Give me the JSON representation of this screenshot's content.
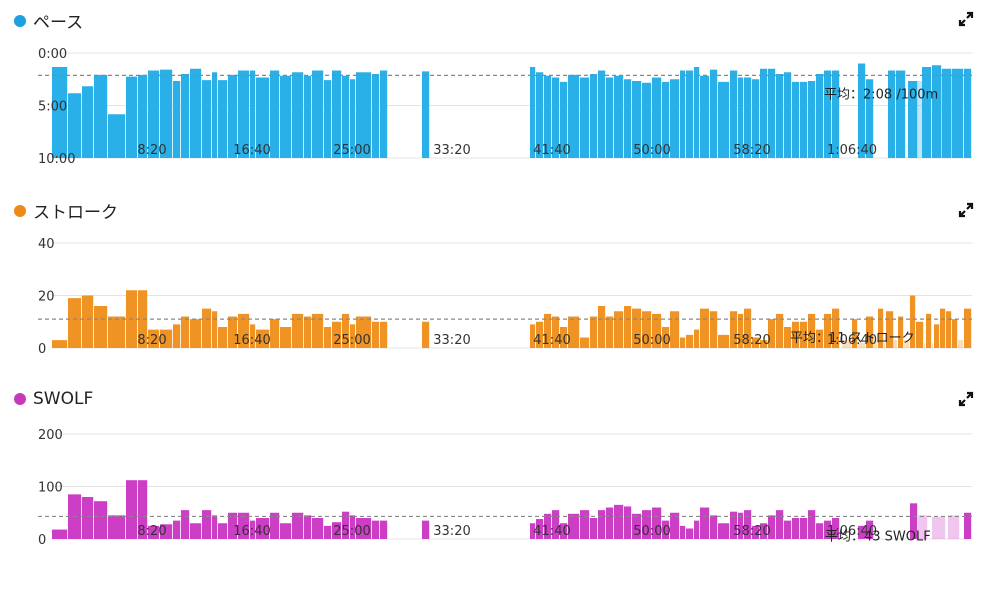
{
  "charts": [
    {
      "id": "pace",
      "title": "ペース",
      "color": "#2ab0e8",
      "dot_color": "#1e9fe0",
      "avg_label": "平均：2:08 /100m",
      "y_ticks": [
        "0:00",
        "5:00",
        "10:00"
      ],
      "x_ticks": [
        "8:20",
        "16:40",
        "25:00",
        "33:20",
        "41:40",
        "50:00",
        "58:20",
        "1:06:40"
      ]
    },
    {
      "id": "stroke",
      "title": "ストローク",
      "color": "#ef9424",
      "dot_color": "#ec8a18",
      "avg_label": "平均：11 ストローク",
      "y_ticks": [
        "40",
        "20",
        "0"
      ],
      "x_ticks": [
        "8:20",
        "16:40",
        "25:00",
        "33:20",
        "41:40",
        "50:00",
        "58:20",
        "1:06:40"
      ]
    },
    {
      "id": "swolf",
      "title": "SWOLF",
      "color": "#cc3ec6",
      "dot_color": "#c43ab8",
      "avg_label": "平均：43 SWOLF",
      "y_ticks": [
        "200",
        "100",
        "0"
      ],
      "x_ticks": [
        "8:20",
        "16:40",
        "25:00",
        "33:20",
        "41:40",
        "50:00",
        "58:20",
        "1:06:40"
      ]
    }
  ],
  "chart_data": [
    {
      "type": "bar",
      "title": "ペース",
      "xlabel": "",
      "ylabel": "",
      "x_unit": "seconds",
      "xlim": [
        0,
        4600
      ],
      "ylim": [
        0,
        600
      ],
      "y_inverted": true,
      "average": 128,
      "grid": true,
      "bars": [
        [
          0,
          80,
          80
        ],
        [
          80,
          150,
          230
        ],
        [
          150,
          210,
          190
        ],
        [
          210,
          280,
          125
        ],
        [
          280,
          370,
          350
        ],
        [
          370,
          430,
          135
        ],
        [
          430,
          480,
          125
        ],
        [
          480,
          540,
          100
        ],
        [
          540,
          605,
          95
        ],
        [
          605,
          645,
          160
        ],
        [
          645,
          690,
          120
        ],
        [
          690,
          750,
          90
        ],
        [
          750,
          800,
          155
        ],
        [
          800,
          830,
          110
        ],
        [
          830,
          880,
          155
        ],
        [
          880,
          930,
          125
        ],
        [
          930,
          990,
          100
        ],
        [
          990,
          1020,
          100
        ],
        [
          1020,
          1090,
          140
        ],
        [
          1090,
          1140,
          100
        ],
        [
          1140,
          1200,
          130
        ],
        [
          1200,
          1260,
          110
        ],
        [
          1260,
          1300,
          130
        ],
        [
          1300,
          1360,
          100
        ],
        [
          1360,
          1400,
          155
        ],
        [
          1400,
          1450,
          100
        ],
        [
          1450,
          1490,
          130
        ],
        [
          1490,
          1520,
          150
        ],
        [
          1520,
          1600,
          110
        ],
        [
          1600,
          1640,
          120
        ],
        [
          1640,
          1680,
          100
        ],
        [
          1850,
          1890,
          105
        ],
        [
          2390,
          2420,
          80
        ],
        [
          2420,
          2460,
          110
        ],
        [
          2460,
          2500,
          130
        ],
        [
          2500,
          2540,
          140
        ],
        [
          2540,
          2580,
          165
        ],
        [
          2580,
          2640,
          125
        ],
        [
          2640,
          2690,
          140
        ],
        [
          2690,
          2730,
          120
        ],
        [
          2730,
          2770,
          100
        ],
        [
          2770,
          2810,
          140
        ],
        [
          2810,
          2860,
          130
        ],
        [
          2860,
          2900,
          150
        ],
        [
          2900,
          2950,
          160
        ],
        [
          2950,
          3000,
          170
        ],
        [
          3000,
          3050,
          140
        ],
        [
          3050,
          3090,
          165
        ],
        [
          3090,
          3140,
          150
        ],
        [
          3140,
          3170,
          100
        ],
        [
          3170,
          3210,
          100
        ],
        [
          3210,
          3240,
          80
        ],
        [
          3240,
          3290,
          130
        ],
        [
          3290,
          3330,
          95
        ],
        [
          3330,
          3390,
          165
        ],
        [
          3390,
          3430,
          100
        ],
        [
          3430,
          3460,
          140
        ],
        [
          3460,
          3500,
          140
        ],
        [
          3500,
          3540,
          150
        ],
        [
          3540,
          3580,
          90
        ],
        [
          3580,
          3620,
          90
        ],
        [
          3620,
          3660,
          120
        ],
        [
          3660,
          3700,
          110
        ],
        [
          3700,
          3740,
          165
        ],
        [
          3740,
          3780,
          165
        ],
        [
          3780,
          3820,
          160
        ],
        [
          3820,
          3860,
          120
        ],
        [
          3860,
          3900,
          100
        ],
        [
          3900,
          3940,
          100
        ],
        [
          4030,
          4070,
          60
        ],
        [
          4070,
          4110,
          150
        ],
        [
          4180,
          4220,
          100
        ],
        [
          4220,
          4270,
          100
        ],
        [
          4280,
          4330,
          160
        ],
        [
          4350,
          4400,
          80
        ],
        [
          4400,
          4450,
          70
        ],
        [
          4450,
          4500,
          90
        ],
        [
          4500,
          4560,
          90
        ],
        [
          4560,
          4600,
          90
        ]
      ],
      "bars_pale": [
        [
          4300,
          4380,
          160
        ],
        [
          4400,
          4550,
          95
        ]
      ]
    },
    {
      "type": "bar",
      "title": "ストローク",
      "xlabel": "",
      "ylabel": "",
      "x_unit": "seconds",
      "xlim": [
        0,
        4600
      ],
      "ylim": [
        0,
        40
      ],
      "average": 11,
      "grid": true,
      "bars": [
        [
          0,
          80,
          3
        ],
        [
          80,
          150,
          19
        ],
        [
          150,
          210,
          20
        ],
        [
          210,
          280,
          16
        ],
        [
          280,
          370,
          12
        ],
        [
          370,
          430,
          22
        ],
        [
          430,
          480,
          22
        ],
        [
          480,
          540,
          7
        ],
        [
          540,
          605,
          7
        ],
        [
          605,
          645,
          9
        ],
        [
          645,
          690,
          12
        ],
        [
          690,
          750,
          11
        ],
        [
          750,
          800,
          15
        ],
        [
          800,
          830,
          14
        ],
        [
          830,
          880,
          8
        ],
        [
          880,
          930,
          12
        ],
        [
          930,
          990,
          13
        ],
        [
          990,
          1020,
          9
        ],
        [
          1020,
          1090,
          7
        ],
        [
          1090,
          1140,
          11
        ],
        [
          1140,
          1200,
          8
        ],
        [
          1200,
          1260,
          13
        ],
        [
          1260,
          1300,
          12
        ],
        [
          1300,
          1360,
          13
        ],
        [
          1360,
          1400,
          8
        ],
        [
          1400,
          1450,
          10
        ],
        [
          1450,
          1490,
          13
        ],
        [
          1490,
          1520,
          9
        ],
        [
          1520,
          1600,
          12
        ],
        [
          1600,
          1640,
          10
        ],
        [
          1640,
          1680,
          10
        ],
        [
          1850,
          1890,
          10
        ],
        [
          2390,
          2420,
          9
        ],
        [
          2420,
          2460,
          10
        ],
        [
          2460,
          2500,
          13
        ],
        [
          2500,
          2540,
          12
        ],
        [
          2540,
          2580,
          8
        ],
        [
          2580,
          2640,
          12
        ],
        [
          2640,
          2690,
          4
        ],
        [
          2690,
          2730,
          12
        ],
        [
          2730,
          2770,
          16
        ],
        [
          2770,
          2810,
          12
        ],
        [
          2810,
          2860,
          14
        ],
        [
          2860,
          2900,
          16
        ],
        [
          2900,
          2950,
          15
        ],
        [
          2950,
          3000,
          14
        ],
        [
          3000,
          3050,
          13
        ],
        [
          3050,
          3090,
          8
        ],
        [
          3090,
          3140,
          14
        ],
        [
          3140,
          3170,
          4
        ],
        [
          3170,
          3210,
          5
        ],
        [
          3210,
          3240,
          7
        ],
        [
          3240,
          3290,
          15
        ],
        [
          3290,
          3330,
          14
        ],
        [
          3330,
          3390,
          5
        ],
        [
          3390,
          3430,
          14
        ],
        [
          3430,
          3460,
          13
        ],
        [
          3460,
          3500,
          15
        ],
        [
          3500,
          3540,
          4
        ],
        [
          3540,
          3580,
          3
        ],
        [
          3580,
          3620,
          11
        ],
        [
          3620,
          3660,
          13
        ],
        [
          3660,
          3700,
          8
        ],
        [
          3700,
          3740,
          10
        ],
        [
          3740,
          3780,
          10
        ],
        [
          3780,
          3820,
          13
        ],
        [
          3820,
          3860,
          7
        ],
        [
          3860,
          3900,
          13
        ],
        [
          3900,
          3940,
          15
        ],
        [
          4000,
          4030,
          11
        ],
        [
          4070,
          4110,
          12
        ],
        [
          4130,
          4160,
          15
        ],
        [
          4170,
          4210,
          14
        ],
        [
          4230,
          4260,
          12
        ],
        [
          4290,
          4320,
          20
        ],
        [
          4320,
          4360,
          10
        ],
        [
          4370,
          4400,
          13
        ],
        [
          4410,
          4440,
          9
        ],
        [
          4440,
          4470,
          15
        ],
        [
          4470,
          4500,
          14
        ],
        [
          4500,
          4530,
          11
        ],
        [
          4560,
          4600,
          15
        ]
      ],
      "bars_pale": [
        [
          3950,
          4000,
          3
        ],
        [
          4030,
          4070,
          2
        ],
        [
          4110,
          4130,
          3
        ],
        [
          4160,
          4170,
          2
        ],
        [
          4200,
          4230,
          3
        ],
        [
          4260,
          4290,
          3
        ],
        [
          4360,
          4370,
          2
        ],
        [
          4400,
          4410,
          2
        ],
        [
          4530,
          4560,
          3
        ]
      ]
    },
    {
      "type": "bar",
      "title": "SWOLF",
      "xlabel": "",
      "ylabel": "",
      "x_unit": "seconds",
      "xlim": [
        0,
        4600
      ],
      "ylim": [
        0,
        200
      ],
      "average": 43,
      "grid": true,
      "bars": [
        [
          0,
          80,
          18
        ],
        [
          80,
          150,
          85
        ],
        [
          150,
          210,
          80
        ],
        [
          210,
          280,
          72
        ],
        [
          280,
          370,
          45
        ],
        [
          370,
          430,
          112
        ],
        [
          430,
          480,
          112
        ],
        [
          480,
          540,
          25
        ],
        [
          540,
          605,
          28
        ],
        [
          605,
          645,
          35
        ],
        [
          645,
          690,
          55
        ],
        [
          690,
          750,
          30
        ],
        [
          750,
          800,
          55
        ],
        [
          800,
          830,
          45
        ],
        [
          830,
          880,
          30
        ],
        [
          880,
          930,
          50
        ],
        [
          930,
          990,
          50
        ],
        [
          990,
          1020,
          35
        ],
        [
          1020,
          1090,
          40
        ],
        [
          1090,
          1140,
          50
        ],
        [
          1140,
          1200,
          30
        ],
        [
          1200,
          1260,
          50
        ],
        [
          1260,
          1300,
          45
        ],
        [
          1300,
          1360,
          40
        ],
        [
          1360,
          1400,
          25
        ],
        [
          1400,
          1450,
          32
        ],
        [
          1450,
          1490,
          52
        ],
        [
          1490,
          1520,
          45
        ],
        [
          1520,
          1600,
          40
        ],
        [
          1600,
          1640,
          35
        ],
        [
          1640,
          1680,
          35
        ],
        [
          1850,
          1890,
          35
        ],
        [
          2390,
          2420,
          30
        ],
        [
          2420,
          2460,
          38
        ],
        [
          2460,
          2500,
          48
        ],
        [
          2500,
          2540,
          55
        ],
        [
          2540,
          2580,
          30
        ],
        [
          2580,
          2640,
          48
        ],
        [
          2640,
          2690,
          55
        ],
        [
          2690,
          2730,
          40
        ],
        [
          2730,
          2770,
          55
        ],
        [
          2770,
          2810,
          60
        ],
        [
          2810,
          2860,
          65
        ],
        [
          2860,
          2900,
          62
        ],
        [
          2900,
          2950,
          48
        ],
        [
          2950,
          3000,
          55
        ],
        [
          3000,
          3050,
          60
        ],
        [
          3050,
          3090,
          35
        ],
        [
          3090,
          3140,
          50
        ],
        [
          3140,
          3170,
          25
        ],
        [
          3170,
          3210,
          20
        ],
        [
          3210,
          3240,
          35
        ],
        [
          3240,
          3290,
          60
        ],
        [
          3290,
          3330,
          45
        ],
        [
          3330,
          3390,
          30
        ],
        [
          3390,
          3430,
          52
        ],
        [
          3430,
          3460,
          50
        ],
        [
          3460,
          3500,
          55
        ],
        [
          3500,
          3540,
          25
        ],
        [
          3540,
          3580,
          30
        ],
        [
          3580,
          3620,
          45
        ],
        [
          3620,
          3660,
          55
        ],
        [
          3660,
          3700,
          35
        ],
        [
          3700,
          3740,
          40
        ],
        [
          3740,
          3780,
          40
        ],
        [
          3780,
          3820,
          55
        ],
        [
          3820,
          3860,
          30
        ],
        [
          3860,
          3900,
          35
        ],
        [
          3900,
          3940,
          40
        ],
        [
          4030,
          4070,
          25
        ],
        [
          4070,
          4110,
          35
        ],
        [
          4290,
          4330,
          68
        ],
        [
          4560,
          4600,
          50
        ]
      ],
      "bars_pale": [
        [
          4330,
          4380,
          45
        ],
        [
          4400,
          4470,
          42
        ],
        [
          4480,
          4540,
          45
        ]
      ]
    }
  ]
}
